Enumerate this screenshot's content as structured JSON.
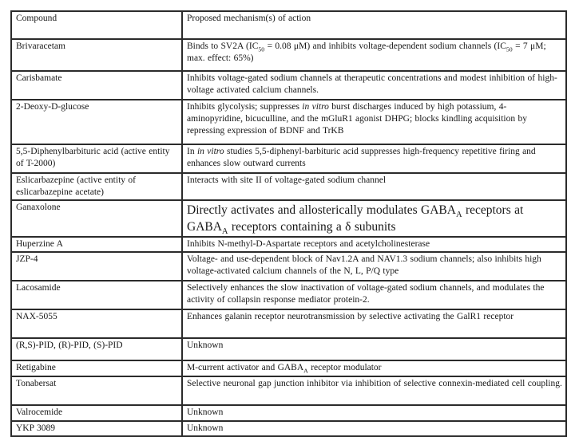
{
  "table": {
    "border_color": "#2b2b2b",
    "header": {
      "compound": "Compound",
      "mechanism": "Proposed mechanism(s) of action"
    },
    "rows": [
      {
        "compound": [
          {
            "t": "Brivaracetam"
          }
        ],
        "mechanism": [
          {
            "t": "Binds to SV2A (IC"
          },
          {
            "t": "50",
            "sub": true
          },
          {
            "t": " = 0.08 μM) and inhibits voltage-dependent sodium channels (IC"
          },
          {
            "t": "50",
            "sub": true
          },
          {
            "t": " = 7 μM; max. effect: 65%)"
          }
        ]
      },
      {
        "compound": [
          {
            "t": "Carisbamate"
          }
        ],
        "mechanism": [
          {
            "t": "Inhibits voltage-gated sodium channels at therapeutic concentrations and modest inhibition of high-voltage activated calcium channels."
          }
        ]
      },
      {
        "compound": [
          {
            "t": "2-Deoxy-D-glucose"
          }
        ],
        "mechanism": [
          {
            "t": "Inhibits glycolysis; suppresses "
          },
          {
            "t": "in vitro",
            "i": true
          },
          {
            "t": " burst discharges induced by high potassium, 4-aminopyridine, bicuculline, and the mGluR1 agonist DHPG; blocks kindling acquisition by repressing expression of BDNF and TrKB"
          }
        ]
      },
      {
        "compound": [
          {
            "t": "5,5-Diphenylbarbituric acid (active entity of T-2000)"
          }
        ],
        "mechanism": [
          {
            "t": "In "
          },
          {
            "t": "in vitro",
            "i": true
          },
          {
            "t": " studies 5,5-diphenyl-barbituric acid suppresses high-frequency repetitive firing and enhances slow outward currents"
          }
        ]
      },
      {
        "compound": [
          {
            "t": "Eslicarbazepine (active entity of eslicarbazepine acetate)"
          }
        ],
        "mechanism": [
          {
            "t": "Interacts with site II of voltage-gated sodium  channel"
          }
        ]
      },
      {
        "compound": [
          {
            "t": "Ganaxolone"
          }
        ],
        "large_mechanism": true,
        "mechanism": [
          {
            "t": "Directly activates and allosterically modulates GABA"
          },
          {
            "t": "A",
            "sub": true
          },
          {
            "t": " receptors at GABA"
          },
          {
            "t": "A",
            "sub": true
          },
          {
            "t": " receptors containing a δ subunits"
          }
        ]
      },
      {
        "compound": [
          {
            "t": "Huperzine A"
          }
        ],
        "mechanism": [
          {
            "t": "Inhibits N-methyl-D-Aspartate receptors and acetylcholinesterase"
          }
        ]
      },
      {
        "compound": [
          {
            "t": "JZP-4"
          }
        ],
        "mechanism": [
          {
            "t": "Voltage- and use-dependent block of Nav1.2A and NAV1.3 sodium channels; also inhibits high voltage-activated calcium channels of the N, L, P/Q type"
          }
        ]
      },
      {
        "compound": [
          {
            "t": "Lacosamide"
          }
        ],
        "mechanism": [
          {
            "t": "Selectively enhances the slow inactivation of voltage-gated sodium channels, and modulates the activity of collapsin response mediator protein-2."
          }
        ]
      },
      {
        "compound": [
          {
            "t": "NAX-5055"
          }
        ],
        "mechanism": [
          {
            "t": "Enhances galanin receptor neurotransmission by selective activating the GalR1 receptor"
          }
        ]
      },
      {
        "compound": [
          {
            "t": "(R,S)-PID, (R)-PID, (S)-PID"
          }
        ],
        "mechanism": [
          {
            "t": "Unknown"
          }
        ]
      },
      {
        "compound": [
          {
            "t": "Retigabine"
          }
        ],
        "mechanism": [
          {
            "t": "M-current activator and GABA"
          },
          {
            "t": "A",
            "sub": true
          },
          {
            "t": " receptor modulator"
          }
        ]
      },
      {
        "compound": [
          {
            "t": "Tonabersat"
          }
        ],
        "mechanism": [
          {
            "t": "Selective neuronal gap junction inhibitor via inhibition of selective connexin-mediated cell coupling."
          }
        ]
      },
      {
        "compound": [
          {
            "t": "Valrocemide"
          }
        ],
        "mechanism": [
          {
            "t": "Unknown"
          }
        ]
      },
      {
        "compound": [
          {
            "t": "YKP 3089"
          }
        ],
        "mechanism": [
          {
            "t": "Unknown"
          }
        ]
      }
    ]
  }
}
